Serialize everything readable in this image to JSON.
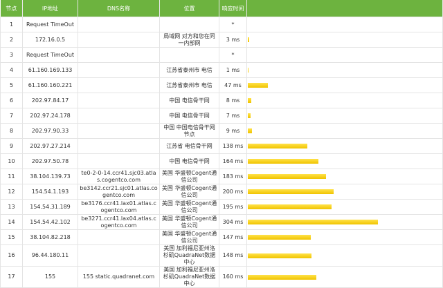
{
  "table": {
    "header": [
      "节点",
      "IP地址",
      "DNS名称",
      "位置",
      "响应时间"
    ],
    "rows": [
      {
        "hop": 1,
        "ip": "Request TimeOut",
        "time": "*"
      },
      {
        "hop": 2,
        "ip": "172.16.0.5",
        "location": "局域网 对方和您在同一内部网",
        "time": {
          "value": 3,
          "label": "3 ms"
        }
      },
      {
        "hop": 3,
        "ip": "Request TimeOut",
        "time": "*"
      },
      {
        "hop": 4,
        "ip": "61.160.169.133",
        "location": "江苏省泰州市 电信",
        "time": {
          "value": 1,
          "label": "1 ms"
        }
      },
      {
        "hop": 5,
        "ip": "61.160.160.221",
        "location": "江苏省泰州市 电信",
        "time": {
          "value": 47,
          "label": "47 ms"
        }
      },
      {
        "hop": 6,
        "ip": "202.97.84.17",
        "location": "中国 电信骨干网",
        "time": {
          "value": 8,
          "label": "8 ms"
        }
      },
      {
        "hop": 7,
        "ip": "202.97.24.178",
        "location": "中国 电信骨干网",
        "time": {
          "value": 7,
          "label": "7 ms"
        }
      },
      {
        "hop": 8,
        "ip": "202.97.90.33",
        "location": "中国 中国电信骨干网节点",
        "time": {
          "value": 9,
          "label": "9 ms"
        }
      },
      {
        "hop": 9,
        "ip": "202.97.27.214",
        "location": "江苏省 电信骨干网",
        "time": {
          "value": 138,
          "label": "138 ms"
        }
      },
      {
        "hop": 10,
        "ip": "202.97.50.78",
        "location": "中国 电信骨干网",
        "time": {
          "value": 164,
          "label": "164 ms"
        }
      },
      {
        "hop": 11,
        "ip": "38.104.139.73",
        "dns": "te0-2-0-14.ccr41.sjc03.atlas.cogentco.com",
        "location": "美国 华盛顿Cogent通信公司",
        "time": {
          "value": 183,
          "label": "183 ms"
        }
      },
      {
        "hop": 12,
        "ip": "154.54.1.193",
        "dns": "be3142.ccr21.sjc01.atlas.cogentco.com",
        "location": "美国 华盛顿Cogent通信公司",
        "time": {
          "value": 200,
          "label": "200 ms"
        }
      },
      {
        "hop": 13,
        "ip": "154.54.31.189",
        "dns": "be3176.ccr41.lax01.atlas.cogentco.com",
        "location": "美国 华盛顿Cogent通信公司",
        "time": {
          "value": 195,
          "label": "195 ms"
        }
      },
      {
        "hop": 14,
        "ip": "154.54.42.102",
        "dns": "be3271.ccr41.lax04.atlas.cogentco.com",
        "location": "美国 华盛顿Cogent通信公司",
        "time": {
          "value": 304,
          "label": "304 ms"
        }
      },
      {
        "hop": 15,
        "ip": "38.104.82.218",
        "location": "美国 华盛顿Cogent通信公司",
        "time": {
          "value": 147,
          "label": "147 ms"
        }
      },
      {
        "hop": 16,
        "ip": "96.44.180.11",
        "location": "美国 加利福尼亚州洛杉矶QuadraNet数据中心",
        "time": {
          "value": 148,
          "label": "148 ms"
        }
      },
      {
        "hop": 17,
        "ip": "155",
        "dns": "155 static.quadranet.com",
        "location": "美国 加利福尼亚州洛杉矶QuadraNet数据中心",
        "time": {
          "value": 160,
          "label": "160 ms"
        }
      }
    ]
  }
}
